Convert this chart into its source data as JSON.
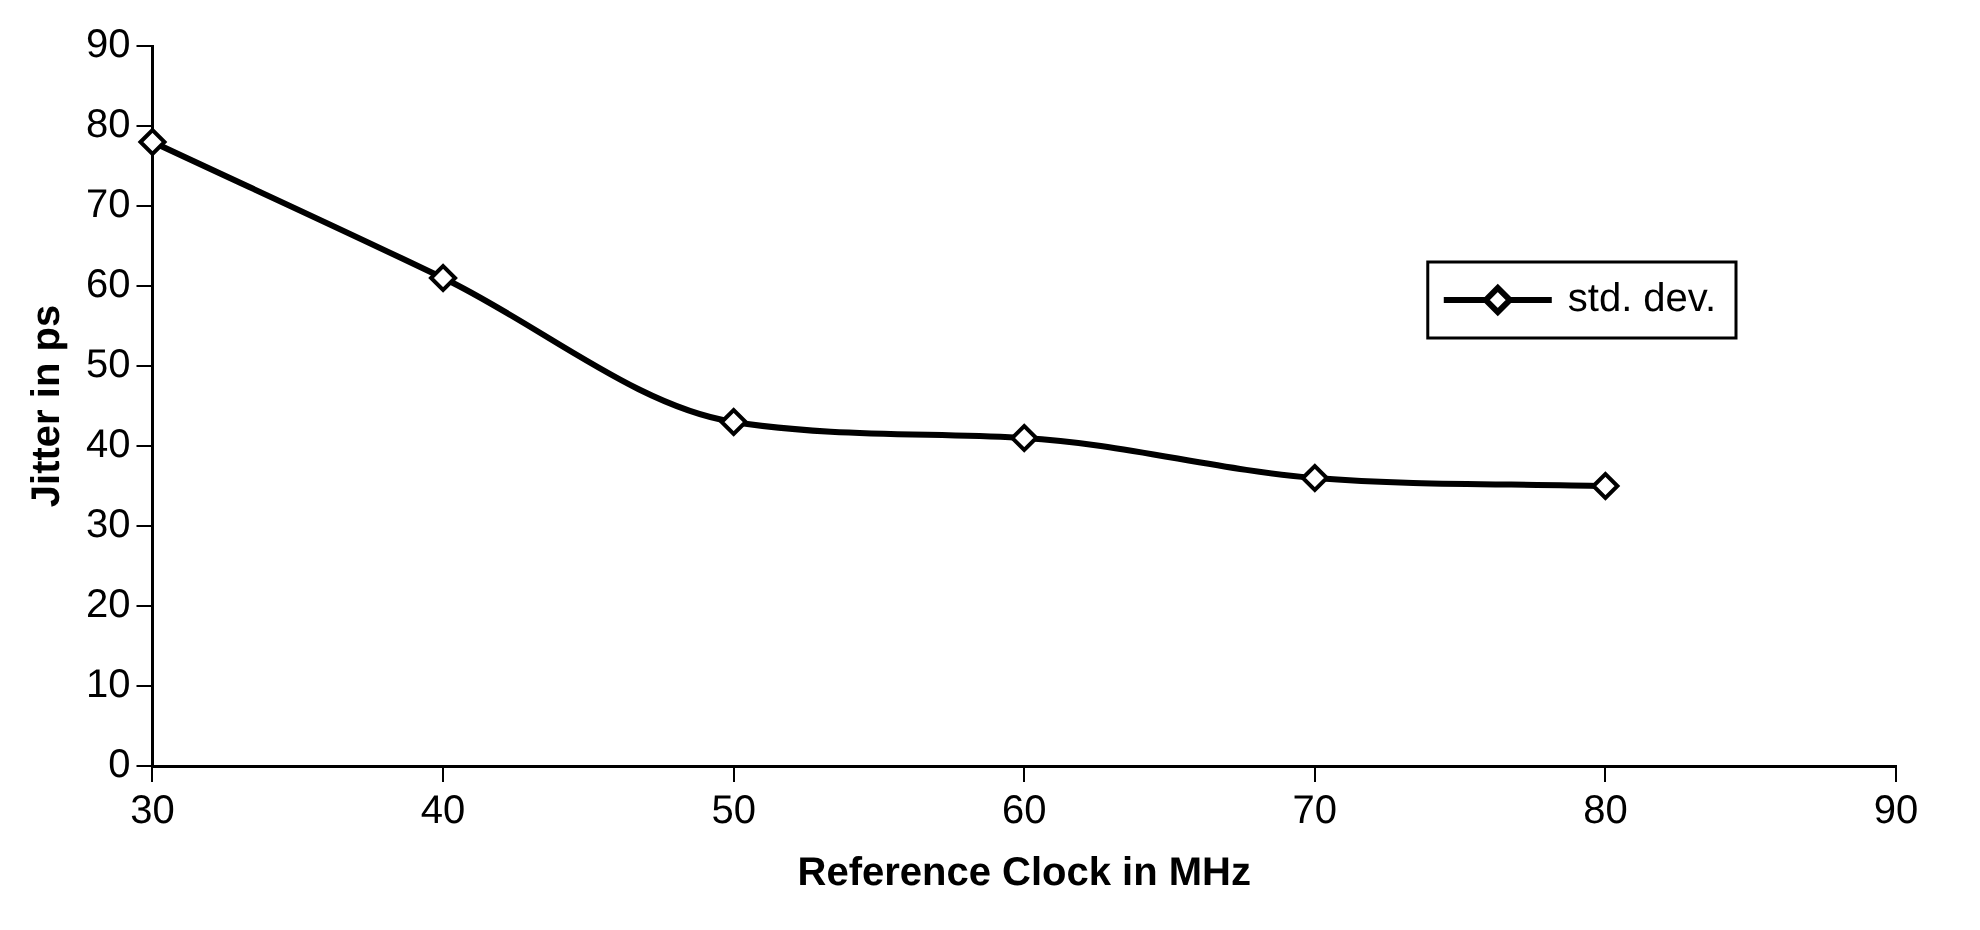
{
  "chart_data": {
    "type": "line",
    "xlabel": "Reference Clock in MHz",
    "ylabel": "Jitter in ps",
    "x": [
      30,
      40,
      50,
      60,
      70,
      80
    ],
    "series": [
      {
        "name": "std. dev.",
        "color": "#000000",
        "values": [
          78,
          61,
          43,
          41,
          36,
          35
        ]
      }
    ],
    "xlim": [
      30,
      90
    ],
    "xticks": [
      30,
      40,
      50,
      60,
      70,
      80,
      90
    ],
    "ylim": [
      0,
      90
    ],
    "yticks": [
      0,
      10,
      20,
      30,
      40,
      50,
      60,
      70,
      80,
      90
    ],
    "grid": false,
    "legend": "right",
    "marker": "diamond",
    "line_style": "solid"
  }
}
